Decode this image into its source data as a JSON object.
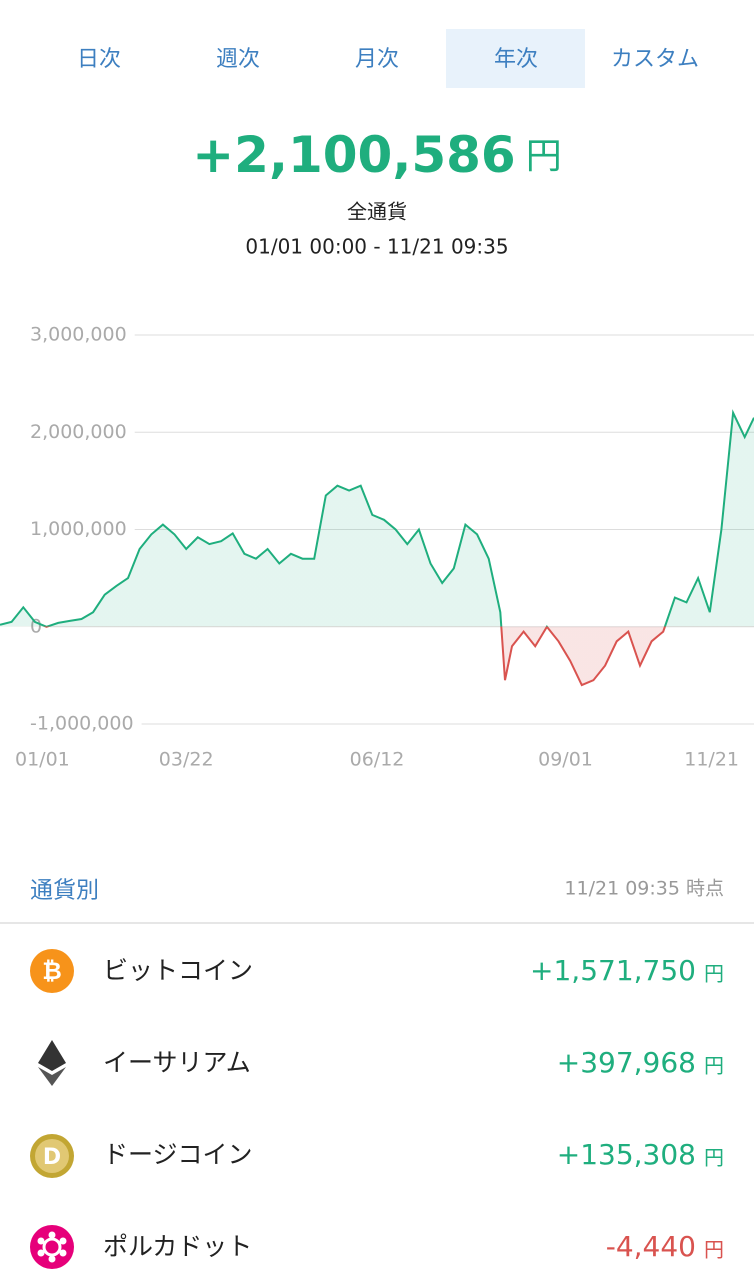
{
  "tabs": [
    "日次",
    "週次",
    "月次",
    "年次",
    "カスタム"
  ],
  "selected_tab": 3,
  "summary": {
    "amount": "+2,100,586",
    "unit": "円",
    "scope": "全通貨",
    "period": "01/01 00:00 - 11/21 09:35"
  },
  "chart_data": {
    "type": "line",
    "colors": {
      "positive": "#1fae7e",
      "negative": "#d9534f"
    },
    "grid": true,
    "x": [
      0,
      5,
      10,
      15,
      20,
      25,
      30,
      35,
      40,
      45,
      50,
      55,
      60,
      65,
      70,
      75,
      80,
      85,
      90,
      95,
      100,
      105,
      110,
      115,
      120,
      125,
      130,
      135,
      140,
      145,
      150,
      155,
      160,
      165,
      170,
      175,
      180,
      185,
      190,
      195,
      200,
      205,
      210,
      215,
      217,
      220,
      225,
      230,
      235,
      240,
      245,
      250,
      255,
      260,
      265,
      270,
      275,
      280,
      285,
      290,
      295,
      300,
      305,
      310,
      315,
      320,
      324
    ],
    "values": [
      20000,
      50000,
      200000,
      50000,
      0,
      40000,
      60000,
      80000,
      150000,
      330000,
      420000,
      500000,
      800000,
      950000,
      1050000,
      950000,
      800000,
      920000,
      850000,
      880000,
      960000,
      750000,
      700000,
      800000,
      650000,
      750000,
      700000,
      700000,
      1350000,
      1450000,
      1400000,
      1450000,
      1150000,
      1100000,
      1000000,
      850000,
      1000000,
      650000,
      450000,
      600000,
      1050000,
      950000,
      700000,
      150000,
      -550000,
      -200000,
      -50000,
      -200000,
      0,
      -150000,
      -350000,
      -600000,
      -550000,
      -400000,
      -150000,
      -50000,
      -400000,
      -150000,
      -50000,
      300000,
      250000,
      500000,
      150000,
      1000000,
      2200000,
      1950000,
      2150000
    ],
    "xlim": [
      0,
      324
    ],
    "xticks": [
      {
        "value": 0,
        "label": "01/01"
      },
      {
        "value": 80,
        "label": "03/22"
      },
      {
        "value": 162,
        "label": "06/12"
      },
      {
        "value": 243,
        "label": "09/01"
      },
      {
        "value": 324,
        "label": "11/21"
      }
    ],
    "ylim": [
      -1000000,
      3000000
    ],
    "yticks": [
      {
        "value": 3000000,
        "label": "3,000,000"
      },
      {
        "value": 2000000,
        "label": "2,000,000"
      },
      {
        "value": 1000000,
        "label": "1,000,000"
      },
      0,
      {
        "value": -1000000,
        "label": "-1,000,000"
      }
    ]
  },
  "section": {
    "title": "通貨別",
    "timestamp": "11/21 09:35 時点"
  },
  "currencies": [
    {
      "name": "ビットコイン",
      "value": "+1,571,750",
      "unit": "円"
    },
    {
      "name": "イーサリアム",
      "value": "+397,968",
      "unit": "円"
    },
    {
      "name": "ドージコイン",
      "value": "+135,308",
      "unit": "円"
    },
    {
      "name": "ポルカドット",
      "value": "-4,440",
      "unit": "円"
    }
  ]
}
